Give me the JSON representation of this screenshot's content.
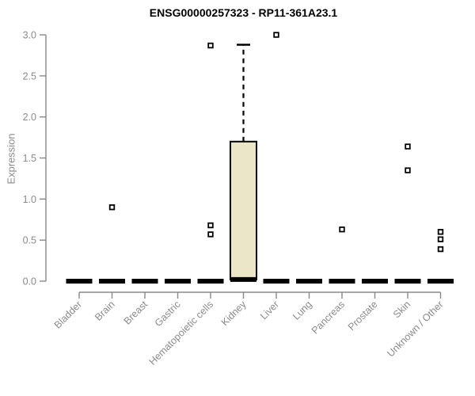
{
  "chart_data": {
    "type": "box",
    "title": "ENSG00000257323 - RP11-361A23.1",
    "ylabel": "Expression",
    "xlabel": "",
    "ylim": [
      0,
      3.0
    ],
    "yticks": [
      "0.0",
      "0.5",
      "1.0",
      "1.5",
      "2.0",
      "2.5",
      "3.0"
    ],
    "grid": false,
    "legend": "none",
    "categories": [
      "Bladder",
      "Brain",
      "Breast",
      "Gastric",
      "Hematopoietic cells",
      "Kidney",
      "Liver",
      "Lung",
      "Pancreas",
      "Prostate",
      "Skin",
      "Unknown / Other"
    ],
    "boxes": [
      {
        "category": "Bladder",
        "q1": 0,
        "median": 0,
        "q3": 0,
        "whisker_low": 0,
        "whisker_high": 0,
        "outliers": []
      },
      {
        "category": "Brain",
        "q1": 0,
        "median": 0,
        "q3": 0,
        "whisker_low": 0,
        "whisker_high": 0,
        "outliers": [
          0.9
        ]
      },
      {
        "category": "Breast",
        "q1": 0,
        "median": 0,
        "q3": 0,
        "whisker_low": 0,
        "whisker_high": 0,
        "outliers": []
      },
      {
        "category": "Gastric",
        "q1": 0,
        "median": 0,
        "q3": 0,
        "whisker_low": 0,
        "whisker_high": 0,
        "outliers": []
      },
      {
        "category": "Hematopoietic cells",
        "q1": 0,
        "median": 0,
        "q3": 0,
        "whisker_low": 0,
        "whisker_high": 0,
        "outliers": [
          2.87,
          0.68,
          0.57
        ]
      },
      {
        "category": "Kidney",
        "q1": 0.02,
        "median": 0.02,
        "q3": 1.7,
        "whisker_low": 0,
        "whisker_high": 2.88,
        "outliers": []
      },
      {
        "category": "Liver",
        "q1": 0,
        "median": 0,
        "q3": 0,
        "whisker_low": 0,
        "whisker_high": 0,
        "outliers": [
          3.0
        ]
      },
      {
        "category": "Lung",
        "q1": 0,
        "median": 0,
        "q3": 0,
        "whisker_low": 0,
        "whisker_high": 0,
        "outliers": []
      },
      {
        "category": "Pancreas",
        "q1": 0,
        "median": 0,
        "q3": 0,
        "whisker_low": 0,
        "whisker_high": 0,
        "outliers": [
          0.63
        ]
      },
      {
        "category": "Prostate",
        "q1": 0,
        "median": 0,
        "q3": 0,
        "whisker_low": 0,
        "whisker_high": 0,
        "outliers": []
      },
      {
        "category": "Skin",
        "q1": 0,
        "median": 0,
        "q3": 0,
        "whisker_low": 0,
        "whisker_high": 0,
        "outliers": [
          1.64,
          1.35
        ]
      },
      {
        "category": "Unknown / Other",
        "q1": 0,
        "median": 0,
        "q3": 0,
        "whisker_low": 0,
        "whisker_high": 0,
        "outliers": [
          0.6,
          0.51,
          0.39
        ]
      }
    ],
    "colors": {
      "box_fill": "#ece6c8",
      "box_stroke": "#000000",
      "median": "#000000",
      "whisker": "#000000",
      "outlier_stroke": "#000000",
      "outlier_fill": "#ffffff",
      "axis": "#888888",
      "tick_label": "#8a8a8a",
      "title": "#000000"
    }
  }
}
